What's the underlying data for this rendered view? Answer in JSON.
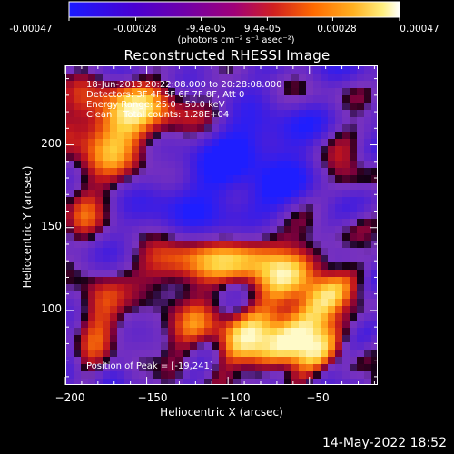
{
  "colorbar": {
    "tick_labels": [
      "-0.00047",
      "-0.00028",
      "-9.4e-05",
      "9.4e-05",
      "0.00028",
      "0.00047"
    ],
    "units": "(photons cm⁻² s⁻¹ asec⁻²)",
    "colors": [
      "#2020ff",
      "#5000c0",
      "#8000a0",
      "#b00060",
      "#e04000",
      "#ff9000",
      "#ffd040",
      "#ffffff"
    ]
  },
  "chart_data": {
    "type": "heatmap",
    "title": "Reconstructed RHESSI Image",
    "xlabel": "Heliocentric X (arcsec)",
    "ylabel": "Heliocentric Y (arcsec)",
    "xlim": [
      -200,
      -8
    ],
    "ylim": [
      55,
      248
    ],
    "x_ticks": [
      -200,
      -150,
      -100,
      -50
    ],
    "y_ticks": [
      100,
      150,
      200
    ],
    "x_tick_labels": [
      "−200",
      "−150",
      "−100",
      "−50"
    ],
    "y_tick_labels": [
      "100",
      "150",
      "200"
    ],
    "zlim": [
      -0.00047,
      0.00047
    ],
    "peak": [
      -19,
      241
    ],
    "annotations": [
      "18-Jun-2013 20:22:08.000 to 20:28:08.000",
      "Detectors: 3F 4F 5F 6F 7F 8F, Att 0",
      "Energy Range: 25.0 - 50.0 keV",
      "Clean    Total counts: 1.28E+04"
    ],
    "peak_label": "Position of Peak = [-19,241]"
  },
  "footer": {
    "timestamp": "14-May-2022 18:52"
  }
}
